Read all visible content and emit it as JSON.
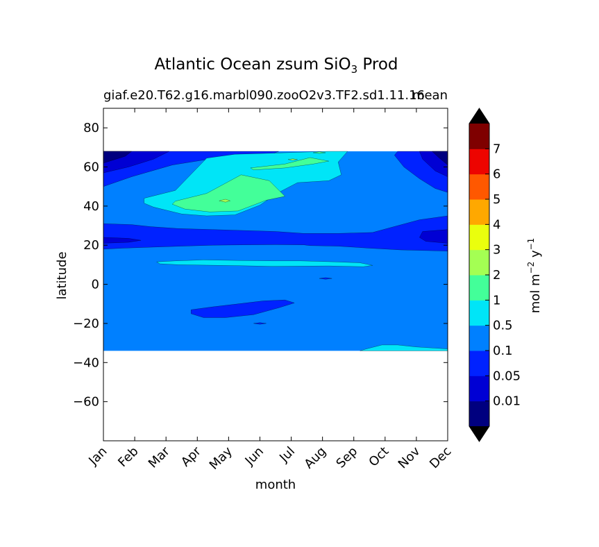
{
  "chart_data": {
    "type": "heatmap",
    "title": "Atlantic Ocean zsum SiO",
    "title_sub": "3",
    "title_end": " Prod",
    "subtitle_left": "giaf.e20.T62.g16.marbl090.zooO2v3.TF2.sd1.11.16",
    "subtitle_right": "mean",
    "xlabel": "month",
    "ylabel": "latitude",
    "x_ticks": [
      "Jan",
      "Feb",
      "Mar",
      "Apr",
      "May",
      "Jun",
      "Jul",
      "Aug",
      "Sep",
      "Oct",
      "Nov",
      "Dec"
    ],
    "x_range": [
      0,
      11
    ],
    "ylim": [
      -80,
      90
    ],
    "y_ticks": [
      80,
      60,
      40,
      20,
      0,
      -20,
      -40,
      -60
    ],
    "y_tick_labels": [
      "80",
      "60",
      "40",
      "20",
      "0",
      "−20",
      "−40",
      "−60"
    ],
    "data_lat_range": [
      -34,
      68
    ],
    "colorbar": {
      "label_main": "mol m",
      "label_exp1": "−2",
      "label_mid": " y",
      "label_exp2": "−1",
      "extend": "both",
      "colors": [
        "#00007f",
        "#0000d4",
        "#0022ff",
        "#0080ff",
        "#00e5f7",
        "#43ff99",
        "#a4ff53",
        "#eaff0d",
        "#ffa800",
        "#ff5800",
        "#ed0400",
        "#7f0000"
      ],
      "under_color": "#000000",
      "over_color": "#000000",
      "tick_labels": [
        "0.01",
        "0.05",
        "0.1",
        "0.5",
        "1",
        "2",
        "3",
        "4",
        "5",
        "6",
        "7"
      ]
    },
    "levels": [
      "0",
      "0.01",
      "0.05",
      "0.1",
      "0.5",
      "1",
      "2",
      "3",
      "4",
      "5",
      "6",
      "7"
    ],
    "background_level": "0.1–0.5",
    "regions": [
      {
        "level": "0.05–0.1",
        "x": [
          0,
          0.9,
          1.5,
          2.4,
          3.5,
          4.5,
          5.5,
          6.4,
          7.5,
          8.6,
          9.4,
          10.1,
          11,
          11,
          10.5,
          9.5,
          8.5,
          7.5,
          6.6,
          6.4,
          5.5,
          4.5,
          3.5,
          2.5,
          1.5,
          0.6,
          0
        ],
        "y": [
          31,
          30.5,
          29.5,
          28.5,
          28,
          27.5,
          27,
          26,
          26,
          26.5,
          30,
          33,
          35,
          17,
          17.2,
          17.6,
          18.5,
          19.5,
          19.8,
          20.2,
          20.3,
          20.2,
          20,
          19.5,
          19,
          18.5,
          18
        ]
      },
      {
        "level": "0.01–0.05",
        "x": [
          0,
          0.8,
          1.2,
          0.8,
          0
        ],
        "y": [
          24,
          23.5,
          22.5,
          21.5,
          21
        ]
      },
      {
        "level": "0.01–0.05",
        "x": [
          10.2,
          11,
          11,
          10.3,
          10.1
        ],
        "y": [
          27,
          28,
          21,
          22,
          24
        ]
      },
      {
        "level": "0.05–0.1",
        "x": [
          0,
          0.7,
          1.5,
          2.6,
          3.7,
          4.7,
          5.6,
          5.4,
          4.6,
          3.3,
          2.2,
          0.9,
          0
        ],
        "y": [
          68,
          68,
          68,
          68,
          68,
          68,
          68,
          66.8,
          65.5,
          63.8,
          61,
          55,
          50
        ]
      },
      {
        "level": "0.01–0.05",
        "x": [
          0,
          0.6,
          1.3,
          2.1,
          1.6,
          0.8,
          0
        ],
        "y": [
          68,
          68,
          68,
          68,
          64,
          60,
          57
        ]
      },
      {
        "level": "0–0.01",
        "x": [
          0,
          0.4,
          0.9,
          0.7,
          0.3,
          0
        ],
        "y": [
          68,
          68,
          68,
          65.5,
          63.5,
          62
        ]
      },
      {
        "level": "0.05–0.1",
        "x": [
          9.4,
          10,
          10.5,
          11,
          11,
          10.6,
          10.1,
          9.6,
          9.3
        ],
        "y": [
          68,
          68,
          68,
          68,
          47,
          49,
          54,
          60,
          66
        ]
      },
      {
        "level": "0.01–0.05",
        "x": [
          10.1,
          10.6,
          11,
          11,
          10.6,
          10.2
        ],
        "y": [
          68,
          68,
          68,
          55,
          58,
          64
        ]
      },
      {
        "level": "0–0.01",
        "x": [
          10.5,
          11,
          11,
          10.7
        ],
        "y": [
          68,
          68,
          61,
          65
        ]
      },
      {
        "level": "0.05–0.1",
        "x": [
          2.8,
          3.5,
          4.3,
          5.1,
          5.8,
          6.1,
          5.6,
          4.8,
          3.9,
          3.2,
          2.8
        ],
        "y": [
          -13,
          -11.5,
          -10,
          -8.5,
          -8,
          -9.5,
          -12,
          -15.5,
          -17,
          -17,
          -15
        ]
      },
      {
        "level": "0.5–1",
        "x": [
          8.9,
          9.4,
          10,
          11,
          11,
          8.2,
          8.4
        ],
        "y": [
          -31,
          -31,
          -32,
          -33,
          -34,
          -34,
          -33
        ]
      },
      {
        "level": "0.5–1",
        "x": [
          1.7,
          2.3,
          3.2,
          4.3,
          5.4,
          6.3,
          7.4,
          8.2,
          8.6,
          8.3,
          7.2,
          6.3,
          5.4,
          4.4,
          3.3,
          2.4,
          1.8
        ],
        "y": [
          11.5,
          12,
          12.5,
          12.2,
          12,
          12,
          11.5,
          11,
          9.7,
          9,
          9.4,
          9.3,
          9.2,
          9.5,
          9.8,
          10,
          10.5
        ]
      },
      {
        "level": "0.5–1",
        "x": [
          1.3,
          2.3,
          3.3,
          4.2,
          5.3,
          6.2,
          7.2,
          7.5,
          7.8,
          7.5,
          7.6,
          7.2,
          6.2,
          5.6,
          5,
          4.2,
          3.3,
          2.5,
          1.6,
          1.3
        ],
        "y": [
          44,
          48,
          64.5,
          66.5,
          67,
          67.5,
          68,
          68,
          68,
          62.5,
          56,
          53,
          52,
          47,
          40.5,
          35.5,
          35,
          36,
          39.5,
          41.5
        ]
      },
      {
        "level": "1–2",
        "x": [
          2.3,
          3.3,
          4.4,
          5.3,
          5.8,
          5.2,
          4.3,
          3.4,
          2.6,
          2.2
        ],
        "y": [
          42.5,
          46.5,
          56,
          53,
          45,
          43,
          37.5,
          37,
          38.5,
          41
        ]
      },
      {
        "level": "1–2",
        "x": [
          4.7,
          5.8,
          6.6,
          7.2,
          6.7,
          5.8,
          4.8
        ],
        "y": [
          59.5,
          61.5,
          64.8,
          63,
          61.5,
          59.5,
          58.5
        ]
      },
      {
        "level": "2–3",
        "x": [
          3.7,
          3.9,
          4.05,
          3.9,
          3.7
        ],
        "y": [
          42.7,
          43.5,
          42.7,
          42,
          42.7
        ]
      },
      {
        "level": "2–3",
        "x": [
          5.9,
          6.05,
          6.2,
          6.05,
          5.9
        ],
        "y": [
          63.8,
          64.2,
          63.8,
          63.4,
          63.8
        ]
      },
      {
        "level": "1–2",
        "x": [
          6.7,
          6.9,
          7.1,
          6.9,
          6.7
        ],
        "y": [
          67.3,
          67.8,
          67.3,
          66.9,
          67.3
        ]
      },
      {
        "level": "0.05–0.1",
        "x": [
          6.9,
          7.1,
          7.3,
          7.1
        ],
        "y": [
          3,
          3.4,
          3,
          2.6
        ]
      },
      {
        "level": "0.05–0.1",
        "x": [
          4.8,
          5,
          5.2,
          5
        ],
        "y": [
          -20,
          -19.6,
          -20,
          -20.4
        ]
      }
    ]
  }
}
